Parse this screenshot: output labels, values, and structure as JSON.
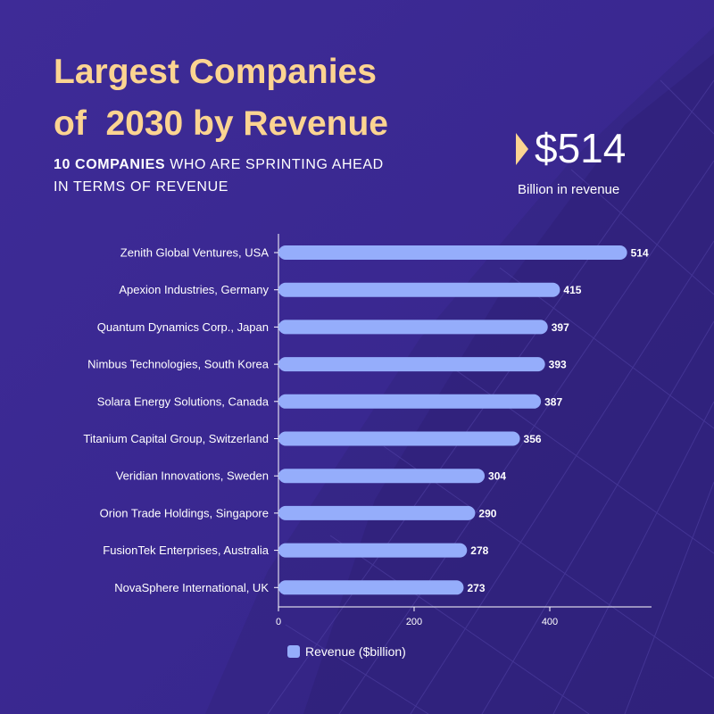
{
  "header": {
    "title_line1": "Largest Companies",
    "title_line2": "of  2030 by Revenue",
    "subtitle_bold": "10 COMPANIES",
    "subtitle_rest": " WHO ARE SPRINTING AHEAD IN TERMS OF REVENUE"
  },
  "kpi": {
    "value": "$514",
    "caption": "Billion in revenue"
  },
  "colors": {
    "background": "#3d2a94",
    "accent": "#fcd491",
    "bar": "#95adfb",
    "text": "#ffffff"
  },
  "chart_data": {
    "type": "bar",
    "orientation": "horizontal",
    "categories": [
      "Zenith Global Ventures, USA",
      "Apexion Industries, Germany",
      "Quantum Dynamics Corp., Japan",
      "Nimbus Technologies, South Korea",
      "Solara Energy Solutions, Canada",
      "Titanium Capital Group, Switzerland",
      "Veridian Innovations, Sweden",
      "Orion Trade Holdings, Singapore",
      "FusionTek Enterprises, Australia",
      "NovaSphere International, UK"
    ],
    "series": [
      {
        "name": "Revenue ($billion)",
        "values": [
          514,
          415,
          397,
          393,
          387,
          356,
          304,
          290,
          278,
          273
        ]
      }
    ],
    "xlim": [
      0,
      550
    ],
    "xticks": [
      "0",
      "200",
      "400"
    ],
    "xtick_values": [
      0,
      200,
      400
    ],
    "legend": "bottom-center",
    "grid": false
  }
}
